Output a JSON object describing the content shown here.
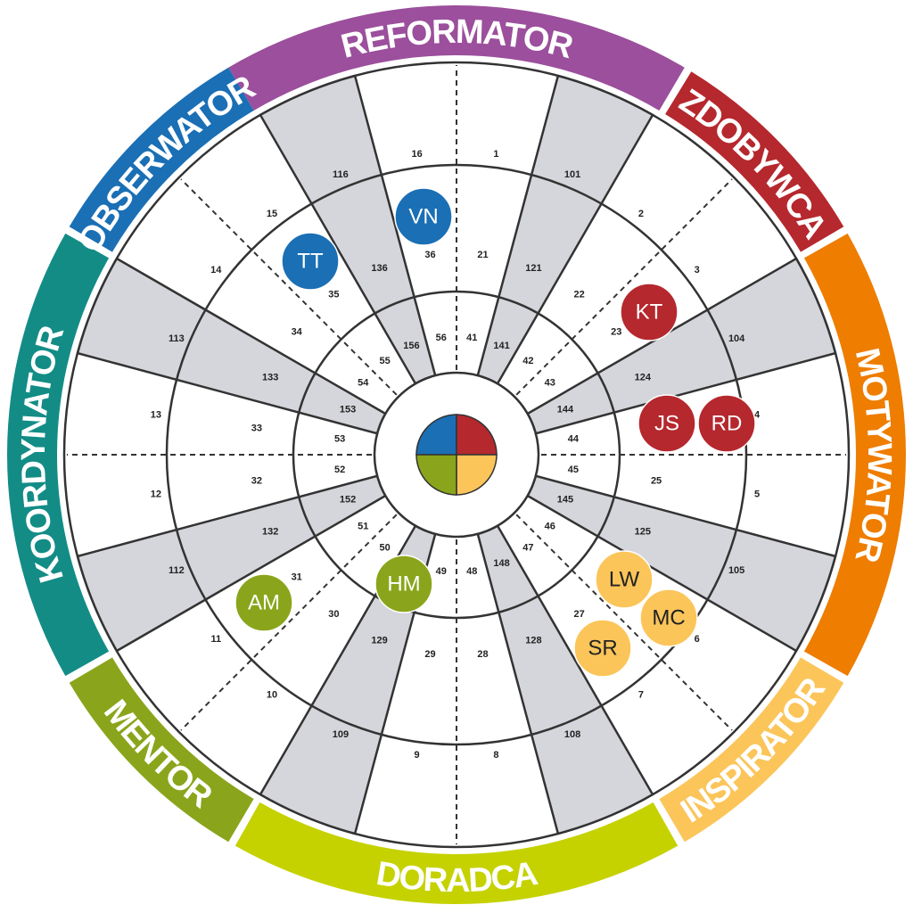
{
  "segments": [
    {
      "label": "REFORMATOR",
      "color": "#9b4f9c"
    },
    {
      "label": "ZDOBYWCA",
      "color": "#b5282e"
    },
    {
      "label": "MOTYWATOR",
      "color": "#ee7d00"
    },
    {
      "label": "INSPIRATOR",
      "color": "#fbc55a"
    },
    {
      "label": "DORADCA",
      "color": "#c5d200"
    },
    {
      "label": "MENTOR",
      "color": "#8aa51b"
    },
    {
      "label": "KOORDYNATOR",
      "color": "#138c86"
    },
    {
      "label": "OBSERWATOR",
      "color": "#1a6fb5"
    }
  ],
  "rings": [
    [
      1,
      101,
      2,
      3,
      104,
      4,
      5,
      105,
      6,
      7,
      108,
      8,
      9,
      109,
      10,
      11,
      112,
      12,
      13,
      113,
      14,
      15,
      116,
      16
    ],
    [
      21,
      121,
      22,
      23,
      124,
      null,
      25,
      125,
      null,
      27,
      128,
      28,
      29,
      129,
      30,
      31,
      132,
      32,
      33,
      133,
      34,
      35,
      136,
      36
    ],
    [
      41,
      141,
      42,
      43,
      144,
      44,
      45,
      145,
      46,
      47,
      148,
      48,
      49,
      null,
      50,
      51,
      152,
      52,
      53,
      153,
      54,
      55,
      156,
      56
    ]
  ],
  "markers": [
    {
      "label": "VN",
      "color": "#1a6fb5"
    },
    {
      "label": "TT",
      "color": "#1a6fb5"
    },
    {
      "label": "KT",
      "color": "#b5282e"
    },
    {
      "label": "JS",
      "color": "#b5282e"
    },
    {
      "label": "RD",
      "color": "#b5282e"
    },
    {
      "label": "AM",
      "color": "#8aa51b"
    },
    {
      "label": "HM",
      "color": "#8aa51b"
    },
    {
      "label": "LW",
      "color": "#fbc55a"
    },
    {
      "label": "MC",
      "color": "#fbc55a"
    },
    {
      "label": "SR",
      "color": "#fbc55a"
    }
  ],
  "center_colors": [
    "#1a6fb5",
    "#b5282e",
    "#fbc55a",
    "#8aa51b"
  ]
}
